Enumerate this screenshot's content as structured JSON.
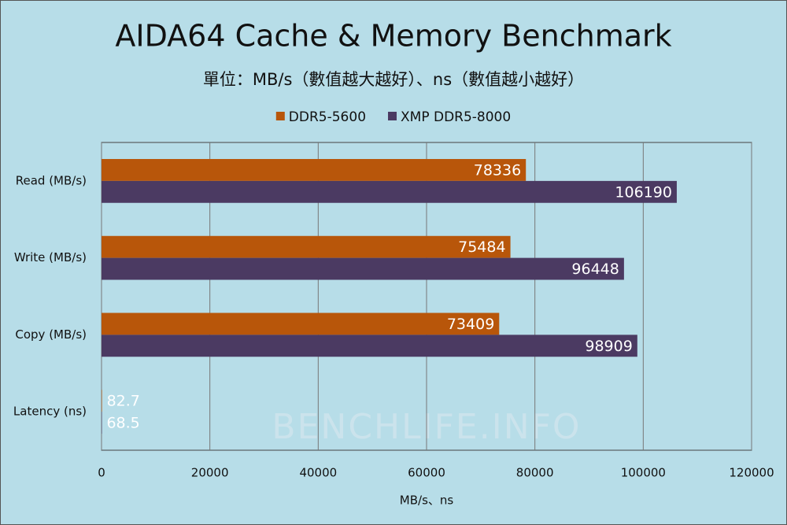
{
  "chart_data": {
    "type": "hbar",
    "title": "AIDA64 Cache & Memory Benchmark",
    "subtitle": "單位：MB/s（數值越大越好）、ns（數值越小越好）",
    "x_label": "MB/s、ns",
    "watermark": "BENCHLIFE.INFO",
    "categories": [
      "Read (MB/s)",
      "Write (MB/s)",
      "Copy (MB/s)",
      "Latency (ns)"
    ],
    "series": [
      {
        "name": "DDR5-5600",
        "color": "#b8560a",
        "values": [
          78336,
          75484,
          73409,
          82.7
        ]
      },
      {
        "name": "XMP DDR5-8000",
        "color": "#4b3a62",
        "values": [
          106190,
          96448,
          98909,
          68.5
        ]
      }
    ],
    "xlim": [
      0,
      120000
    ],
    "xticks": [
      0,
      20000,
      40000,
      60000,
      80000,
      100000,
      120000
    ],
    "grid": true,
    "legend": "top"
  }
}
